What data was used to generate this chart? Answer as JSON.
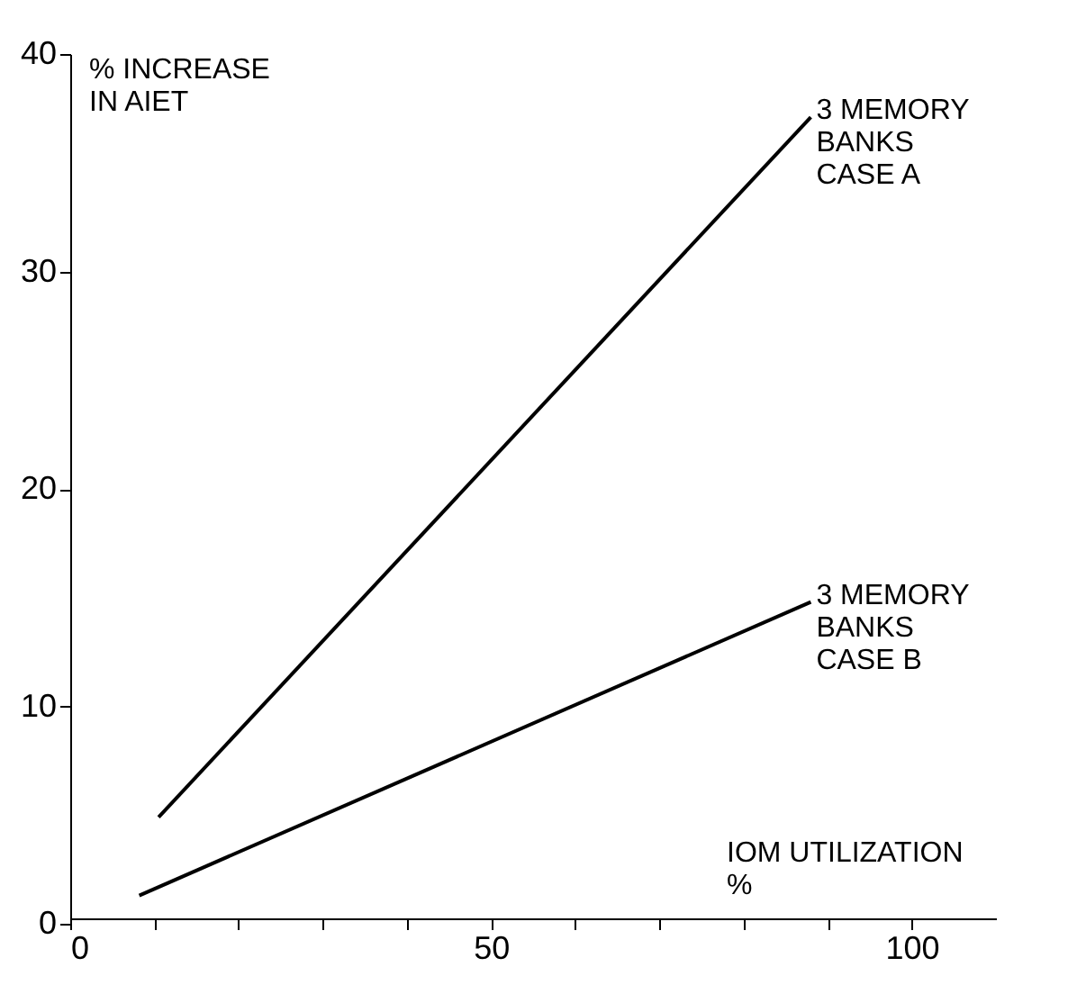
{
  "chart_data": {
    "type": "line",
    "xlabel": "IOM UTILIZATION\n%",
    "ylabel": "% INCREASE\nIN AIET",
    "xlim": [
      0,
      110
    ],
    "ylim": [
      0,
      40
    ],
    "xticks": [
      0,
      {
        "value": 10,
        "label": null
      },
      {
        "value": 20,
        "label": null
      },
      {
        "value": 30,
        "label": null
      },
      {
        "value": 40,
        "label": null
      },
      50,
      {
        "value": 60,
        "label": null
      },
      {
        "value": 70,
        "label": null
      },
      {
        "value": 80,
        "label": null
      },
      {
        "value": 90,
        "label": null
      },
      100
    ],
    "yticks": [
      0,
      10,
      20,
      30,
      40
    ],
    "grid": false,
    "line_style": "solid",
    "marker": "none",
    "series": [
      {
        "name": "3 MEMORY\nBANKS\nCASE A",
        "color": "#000000",
        "x": [
          10.5,
          88
        ],
        "values": [
          4.9,
          37.1
        ]
      },
      {
        "name": "3 MEMORY\nBANKS\nCASE B",
        "color": "#000000",
        "x": [
          8.2,
          88
        ],
        "values": [
          1.3,
          14.8
        ]
      }
    ]
  }
}
